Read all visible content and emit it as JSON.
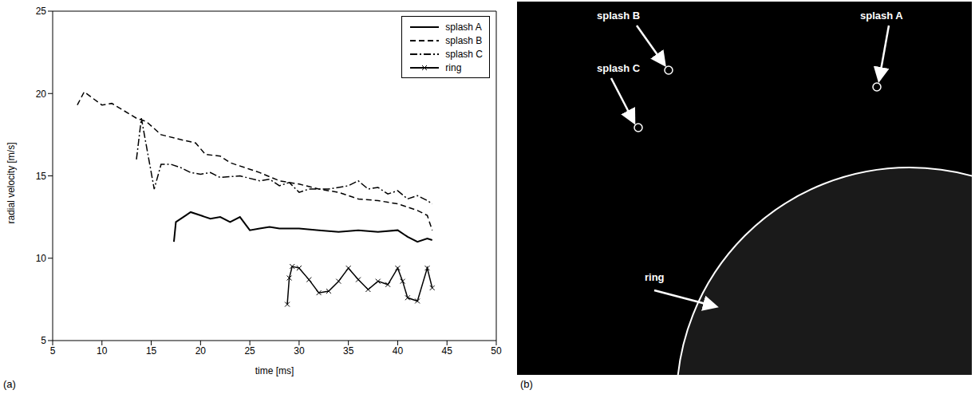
{
  "chart_data": {
    "type": "line",
    "panel_label": "(a)",
    "x_label": "time [ms]",
    "y_label": "radial velocity [m/s]",
    "xlim": [
      5,
      50
    ],
    "xticks": [
      5,
      10,
      15,
      20,
      25,
      30,
      35,
      40,
      45,
      50
    ],
    "ylim": [
      5,
      25
    ],
    "yticks": [
      5,
      10,
      15,
      20,
      25
    ],
    "grid": false,
    "legend": "top-right",
    "series": [
      {
        "name": "splash A",
        "color": "#000000",
        "line_style": "solid",
        "marker": "none",
        "x": [
          17.3,
          17.5,
          18.5,
          19,
          20,
          21,
          22,
          23,
          24,
          25,
          26,
          27,
          28,
          30,
          32,
          34,
          36,
          38,
          40,
          41,
          42,
          43,
          43.5
        ],
        "values": [
          11.0,
          12.2,
          12.6,
          12.8,
          12.6,
          12.4,
          12.5,
          12.2,
          12.5,
          11.7,
          11.8,
          11.9,
          11.8,
          11.8,
          11.7,
          11.6,
          11.7,
          11.6,
          11.7,
          11.3,
          11.0,
          11.2,
          11.1
        ]
      },
      {
        "name": "splash B",
        "color": "#000000",
        "line_style": "dashed",
        "marker": "none",
        "x": [
          7.5,
          8.2,
          10,
          11,
          13.5,
          14.5,
          16,
          18,
          19.5,
          20.5,
          22,
          23,
          25,
          26,
          28,
          30,
          32,
          34,
          36,
          38,
          40,
          42,
          43,
          43.5
        ],
        "values": [
          19.3,
          20.1,
          19.3,
          19.4,
          18.5,
          18.3,
          17.5,
          17.2,
          17.0,
          16.3,
          16.2,
          15.8,
          15.4,
          15.2,
          14.7,
          14.5,
          14.2,
          14.0,
          13.6,
          13.5,
          13.3,
          12.9,
          12.6,
          11.7
        ]
      },
      {
        "name": "splash C",
        "color": "#000000",
        "line_style": "dashdot",
        "marker": "none",
        "x": [
          13.5,
          14,
          15.3,
          16,
          17,
          18,
          19,
          20,
          21,
          22,
          24,
          26,
          27,
          28,
          29,
          30,
          31,
          33,
          35,
          36,
          37,
          38,
          39,
          40,
          41,
          42,
          43,
          43.5
        ],
        "values": [
          16.0,
          18.5,
          14.2,
          15.7,
          15.7,
          15.5,
          15.2,
          15.1,
          15.2,
          14.9,
          15.0,
          14.7,
          14.8,
          14.4,
          14.6,
          14.0,
          14.2,
          14.2,
          14.4,
          14.7,
          14.2,
          14.3,
          13.9,
          14.1,
          13.6,
          13.8,
          13.5,
          13.3
        ]
      },
      {
        "name": "ring",
        "color": "#000000",
        "line_style": "solid",
        "marker": "x",
        "x": [
          28.8,
          29,
          29.3,
          30,
          31,
          32,
          33,
          34,
          35,
          36,
          37,
          38,
          39,
          40,
          40.5,
          41,
          42,
          43,
          43.5
        ],
        "values": [
          7.2,
          8.8,
          9.5,
          9.4,
          8.7,
          7.9,
          8.0,
          8.6,
          9.4,
          8.7,
          8.1,
          8.6,
          8.4,
          9.4,
          8.6,
          7.6,
          7.4,
          9.4,
          8.2
        ]
      }
    ]
  },
  "image": {
    "panel_label": "(b)",
    "labels": [
      "splash A",
      "splash B",
      "splash C",
      "ring"
    ]
  }
}
